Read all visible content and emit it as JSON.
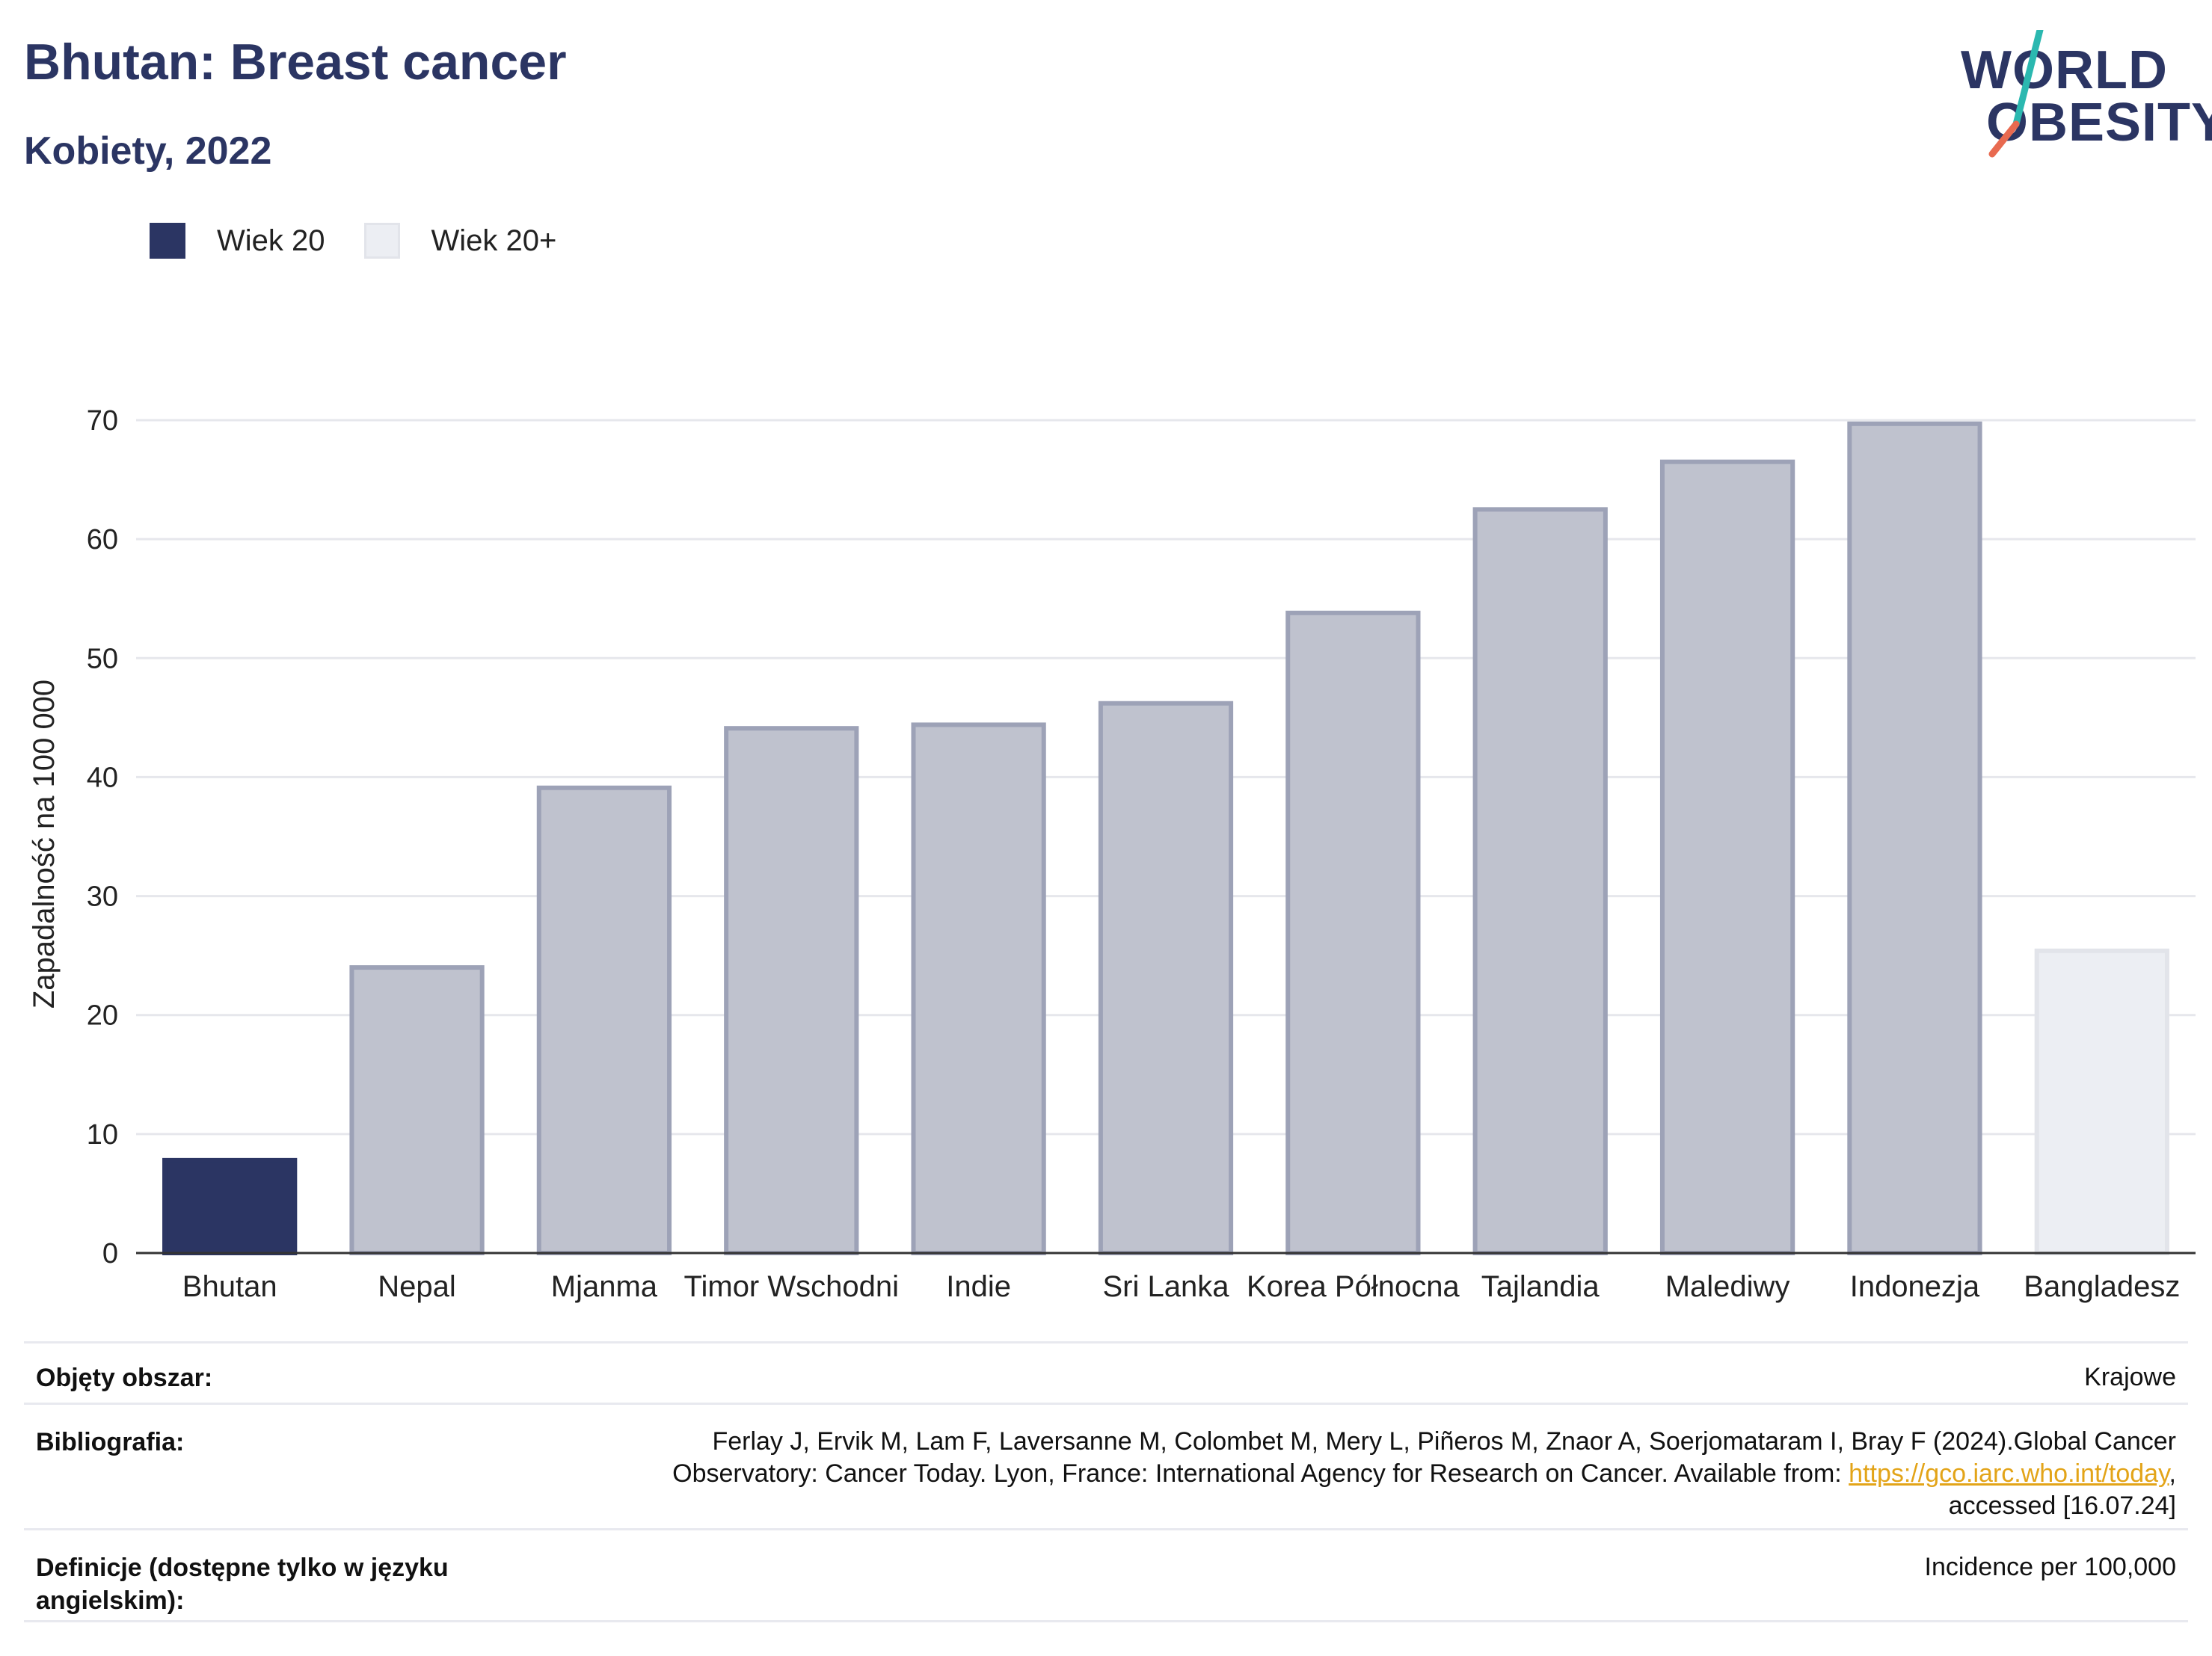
{
  "header": {
    "title": "Bhutan: Breast cancer",
    "subtitle": "Kobiety, 2022"
  },
  "logo": {
    "line1": "WORLD",
    "line2": "OBESITY",
    "text_color": "#2b3563",
    "slash_colors": [
      "#2bb8b0",
      "#e86a50"
    ]
  },
  "legend": [
    {
      "label": "Wiek 20",
      "color": "#2b3563"
    },
    {
      "label": "Wiek 20+",
      "color": "#eceef3"
    }
  ],
  "chart_data": {
    "type": "bar",
    "title": "",
    "xlabel": "",
    "ylabel": "Zapadalność na 100 000",
    "ylim": [
      0,
      70
    ],
    "yticks": [
      0,
      10,
      20,
      30,
      40,
      50,
      60,
      70
    ],
    "grid": true,
    "categories": [
      "Bhutan",
      "Nepal",
      "Mjanma",
      "Timor Wschodni",
      "Indie",
      "Sri Lanka",
      "Korea Północna",
      "Tajlandia",
      "Malediwy",
      "Indonezja",
      "Bangladesz"
    ],
    "values": [
      7.8,
      24.0,
      39.1,
      44.1,
      44.4,
      46.2,
      53.8,
      62.5,
      66.5,
      69.7,
      25.4
    ],
    "bar_styles": [
      "highlight",
      "comparison",
      "comparison",
      "comparison",
      "comparison",
      "comparison",
      "comparison",
      "comparison",
      "comparison",
      "comparison",
      "light"
    ],
    "colors": {
      "highlight": "#2b3563",
      "comparison": "#bfc2ce",
      "comparison_border": "#9da2b7",
      "light": "#eceef3",
      "light_border": "#e2e4ea"
    }
  },
  "meta": {
    "rows": [
      {
        "key": "Objęty obszar:",
        "value_lines": [
          "Krajowe"
        ]
      },
      {
        "key": "Bibliografia:",
        "value_lines": [
          "Ferlay J, Ervik M, Lam F, Laversanne M, Colombet M, Mery L, Piñeros M, Znaor A, Soerjomataram I, Bray F (2024).Global Cancer",
          "Observatory: Cancer Today. Lyon, France: International Agency for Research on Cancer. Available from: ",
          "https://gco.iarc.who.int/today",
          ",",
          "accessed [16.07.24]"
        ]
      },
      {
        "key_lines": [
          "Definicje (dostępne tylko w języku",
          "angielskim):"
        ],
        "value_lines": [
          "Incidence per 100,000"
        ]
      }
    ]
  }
}
